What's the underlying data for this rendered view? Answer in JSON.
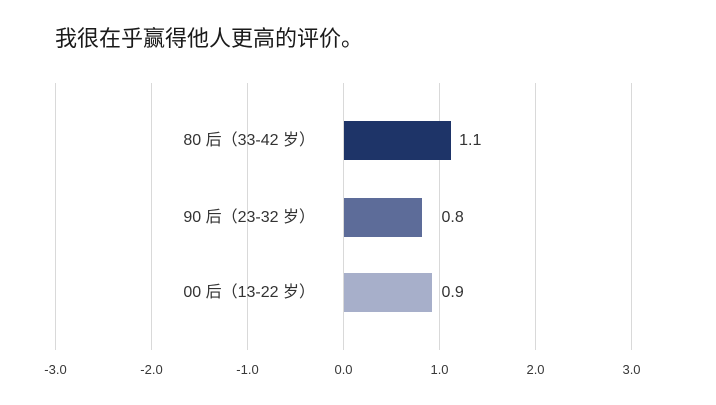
{
  "chart_data": {
    "type": "bar",
    "orientation": "horizontal",
    "title": "我很在乎赢得他人更高的评价。",
    "categories": [
      "80 后（33-42 岁）",
      "90 后（23-32 岁）",
      "00 后（13-22 岁）"
    ],
    "values": [
      1.1,
      0.8,
      0.9
    ],
    "value_labels": [
      "1.1",
      "0.8",
      "0.9"
    ],
    "bar_colors": [
      "#1e3468",
      "#5d6c99",
      "#a7afca"
    ],
    "xlim": [
      -3,
      3
    ],
    "x_tick_labels": [
      "-3.0",
      "-2.0",
      "-1.0",
      "0.0",
      "1.0",
      "2.0",
      "3.0"
    ],
    "x_tick_values": [
      -3,
      -2,
      -1,
      0,
      1,
      2,
      3
    ],
    "grid": true,
    "gridline_color": "#d9d9d9",
    "legend": false
  }
}
